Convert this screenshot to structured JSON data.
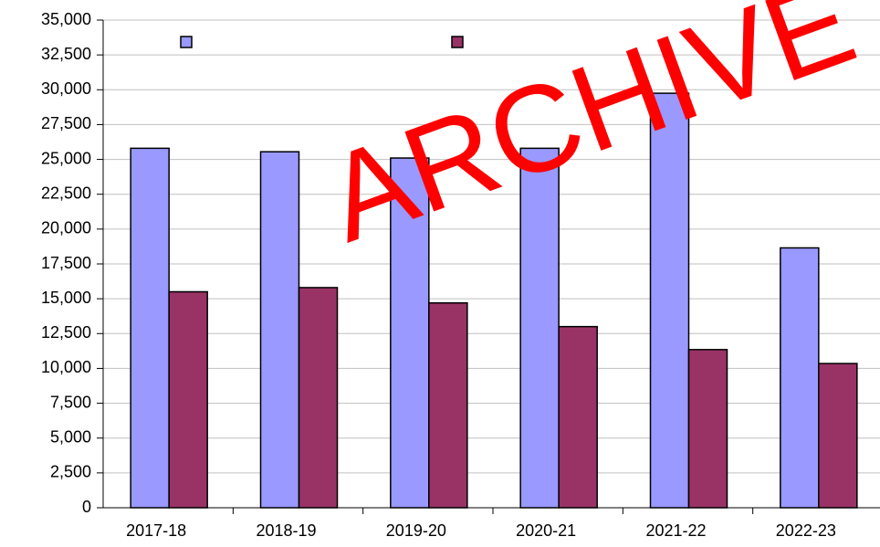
{
  "chart_data": {
    "type": "bar",
    "categories": [
      "2017-18",
      "2018-19",
      "2019-20",
      "2020-21",
      "2021-22",
      "2022-23"
    ],
    "series": [
      {
        "color": "#9999ff",
        "values": [
          25800,
          25550,
          25100,
          25800,
          29750,
          18650
        ]
      },
      {
        "color": "#993366",
        "values": [
          15500,
          15800,
          14700,
          13000,
          11350,
          10350
        ]
      }
    ],
    "ylim": [
      0,
      35000
    ],
    "yticks": [
      0,
      {
        "value": 2500,
        "label": "2,500"
      },
      {
        "value": 5000,
        "label": "5,000"
      },
      {
        "value": 7500,
        "label": "7,500"
      },
      {
        "value": 10000,
        "label": "10,000"
      },
      {
        "value": 12500,
        "label": "12,500"
      },
      {
        "value": 15000,
        "label": "15,000"
      },
      {
        "value": 17500,
        "label": "17,500"
      },
      {
        "value": 20000,
        "label": "20,000"
      },
      {
        "value": 22500,
        "label": "22,500"
      },
      {
        "value": 25000,
        "label": "25,000"
      },
      {
        "value": 27500,
        "label": "27,500"
      },
      {
        "value": 30000,
        "label": "30,000"
      },
      {
        "value": 32500,
        "label": "32,500"
      },
      {
        "value": 35000,
        "label": "35,000"
      }
    ],
    "grid": true,
    "annotation": "ARCHIVE"
  }
}
